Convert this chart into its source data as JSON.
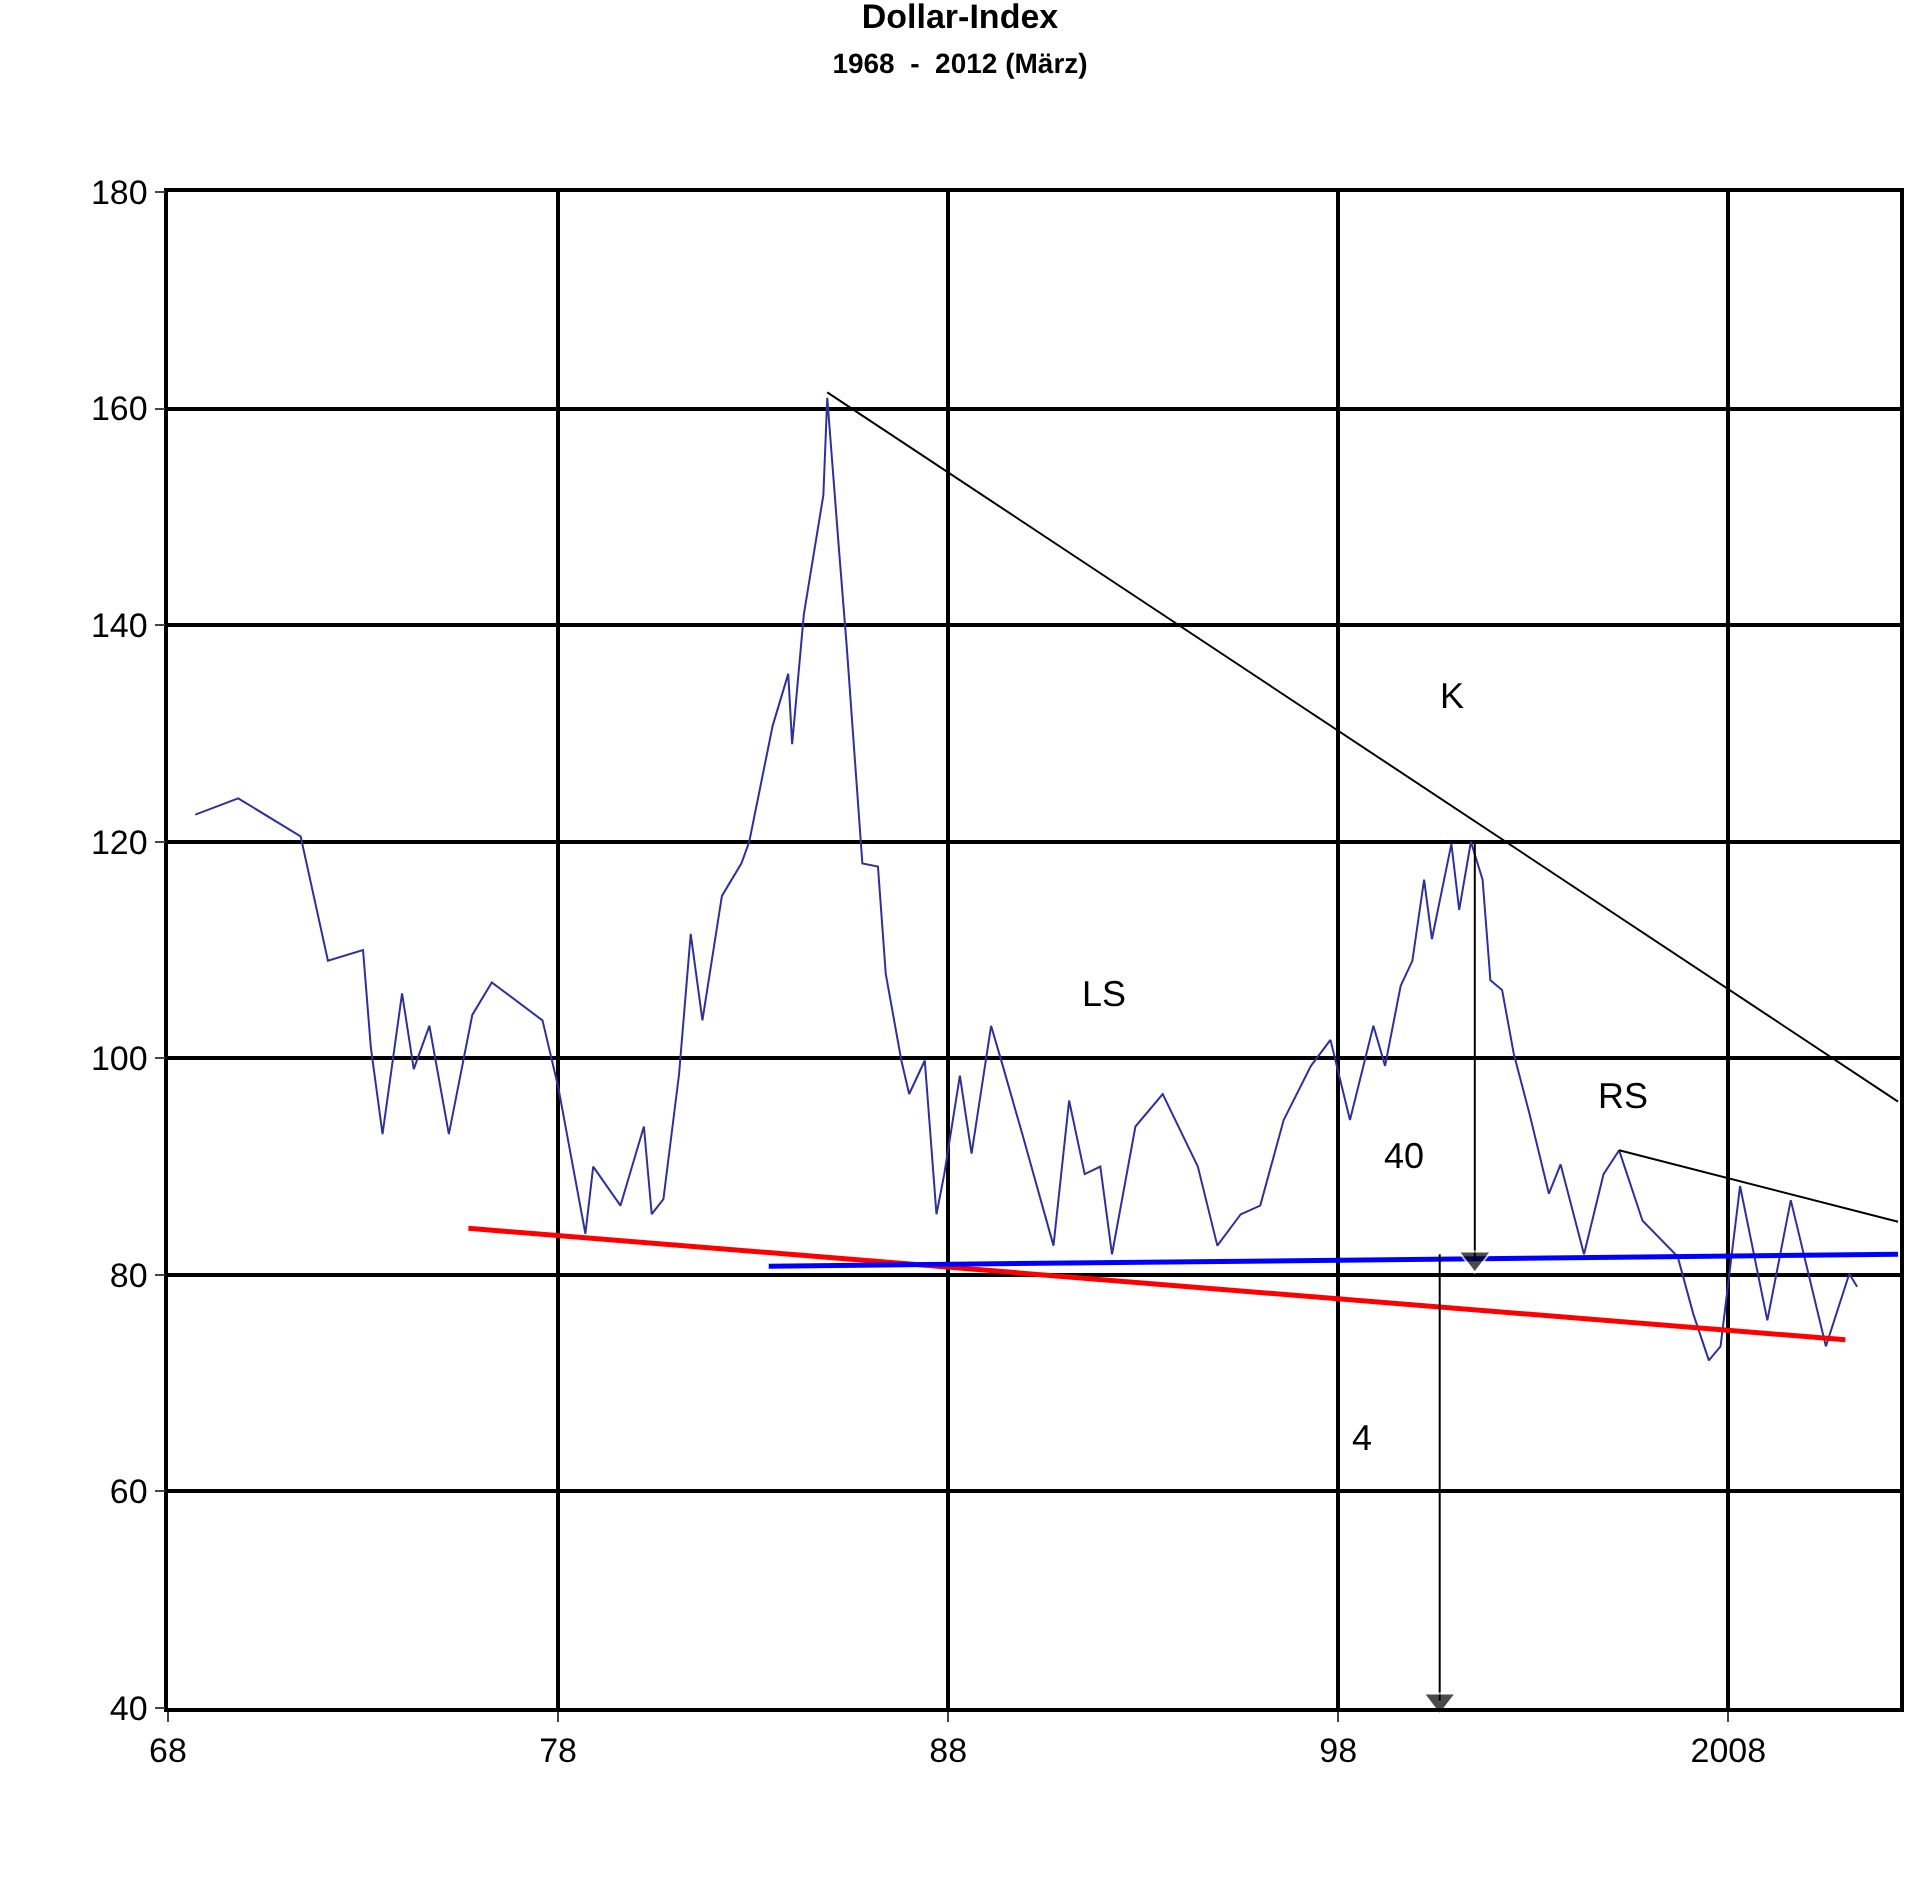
{
  "chart_data": {
    "type": "line",
    "title": "Dollar-Index",
    "subtitle": "1968  -  2012 (März)",
    "xlim": [
      1968,
      2012.4
    ],
    "xticks": [
      {
        "value": 1968,
        "label": "68"
      },
      {
        "value": 1978,
        "label": "78"
      },
      {
        "value": 1988,
        "label": "88"
      },
      {
        "value": 1998,
        "label": "98"
      },
      2008
    ],
    "ylim": [
      40,
      180
    ],
    "yticks": [
      40,
      60,
      80,
      100,
      120,
      140,
      160,
      180
    ],
    "grid": true,
    "marker": "none",
    "line_style": "solid",
    "series": [
      {
        "color": "#30309a",
        "x": [
          1968.7,
          1969.8,
          1971.4,
          1972.1,
          1973.0,
          1973.2,
          1973.5,
          1974.0,
          1974.3,
          1974.7,
          1975.2,
          1975.8,
          1976.3,
          1977.6,
          1978.0,
          1978.7,
          1978.9,
          1979.6,
          1980.2,
          1980.4,
          1980.7,
          1981.1,
          1981.4,
          1981.7,
          1982.2,
          1982.7,
          1982.9,
          1983.5,
          1983.9,
          1984.0,
          1984.3,
          1984.8,
          1984.9,
          1985.2,
          1985.4,
          1985.8,
          1986.2,
          1986.4,
          1986.8,
          1987.0,
          1987.4,
          1987.7,
          1987.9,
          1988.3,
          1988.6,
          1989.1,
          1989.4,
          1989.9,
          1990.7,
          1991.1,
          1991.5,
          1991.9,
          1992.2,
          1992.8,
          1993.5,
          1994.4,
          1994.9,
          1995.5,
          1996.0,
          1996.6,
          1997.3,
          1997.8,
          1998.3,
          1998.9,
          1999.2,
          1999.6,
          1999.9,
          2000.2,
          2000.4,
          2000.9,
          2001.1,
          2001.4,
          2001.7,
          2001.9,
          2002.2,
          2002.5,
          2002.9,
          2003.4,
          2003.7,
          2004.3,
          2004.8,
          2005.2,
          2005.8,
          2006.7,
          2007.1,
          2007.5,
          2007.8,
          2008.3,
          2009.0,
          2009.6,
          2010.5,
          2011.1,
          2011.3
        ],
        "values": [
          122.5,
          124,
          120.5,
          109,
          110,
          101,
          93,
          106,
          99,
          103,
          93,
          104,
          107,
          103.5,
          97.4,
          83.8,
          90,
          86.4,
          93.7,
          85.6,
          87,
          98.5,
          111.5,
          103.5,
          115,
          118,
          120,
          130.7,
          135.5,
          129,
          141,
          152,
          161,
          147,
          138,
          118,
          117.7,
          107.8,
          99.8,
          96.7,
          99.8,
          85.6,
          89.3,
          98.4,
          91.2,
          103,
          99.3,
          93,
          82.7,
          96.1,
          89.3,
          90,
          81.9,
          93.7,
          96.7,
          90,
          82.7,
          85.6,
          86.4,
          94.3,
          99.3,
          101.7,
          94.3,
          103,
          99.3,
          106.7,
          109,
          116.5,
          111,
          119.8,
          113.7,
          120,
          116.5,
          107.2,
          106.3,
          100.4,
          94.9,
          87.5,
          90.2,
          81.9,
          89.3,
          91.5,
          85,
          81.7,
          76.4,
          72.1,
          73.4,
          88.2,
          75.8,
          86.9,
          73.4,
          80.1,
          78.9
        ]
      },
      {
        "color": "#000000",
        "x": [
          1984.9,
          2012.35
        ],
        "values": [
          161.5,
          96
        ]
      },
      {
        "color": "#000000",
        "x": [
          2005.2,
          2012.35
        ],
        "values": [
          91.5,
          84.9
        ]
      },
      {
        "color": "#ff0000",
        "x": [
          1975.7,
          2011.0
        ],
        "values": [
          84.3,
          74.0
        ]
      },
      {
        "color": "#0000ff",
        "x": [
          1983.4,
          2012.35
        ],
        "values": [
          80.8,
          81.9
        ]
      },
      {
        "color": "#000000",
        "x": [
          2001.5,
          2001.5
        ],
        "values": [
          120,
          81.5
        ],
        "marker": "triangle"
      },
      {
        "color": "#000000",
        "x": [
          2000.6,
          2000.6
        ],
        "values": [
          81.9,
          40.7
        ],
        "marker": "triangle"
      }
    ],
    "annotations": [
      {
        "text": "K",
        "x": 2000.9,
        "y": 123.3
      },
      {
        "text": "LS",
        "x": 1989.1,
        "y": 103
      },
      {
        "text": "RS",
        "x": 2005.2,
        "y": 91.5
      },
      {
        "text": "40",
        "x": 2001.5,
        "y": 91
      },
      {
        "text": "4",
        "x": 2000.6,
        "y": 65
      }
    ]
  }
}
